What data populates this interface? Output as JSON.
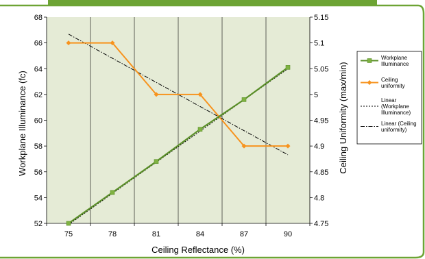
{
  "colors": {
    "frame": "#6da434",
    "plot_bg": "#e5ebd6",
    "workplane": "#5a8f28",
    "workplane_marker": "#7fb241",
    "ceiling": "#f7931e",
    "trend1": "#000000",
    "trend2": "#000000"
  },
  "chart_data": {
    "type": "line",
    "xlabel": "Ceiling Reflectance (%)",
    "ylabel_left": "Workplane Illuminance (fc)",
    "ylabel_right": "Ceiling Uniformity (max/min)",
    "categories": [
      "75",
      "78",
      "81",
      "84",
      "87",
      "90"
    ],
    "left_axis": {
      "min": 52,
      "max": 68,
      "ticks": [
        "52",
        "54",
        "56",
        "58",
        "60",
        "62",
        "64",
        "66",
        "68"
      ]
    },
    "right_axis": {
      "min": 4.75,
      "max": 5.15,
      "ticks": [
        "4.75",
        "4.8",
        "4.85",
        "4.9",
        "4.95",
        "5",
        "5.05",
        "5.1",
        "5.15"
      ]
    },
    "grid": "vertical",
    "legend_position": "right",
    "series": [
      {
        "name": "Workplane Illuminance",
        "axis": "left",
        "values": [
          52.0,
          54.4,
          56.8,
          59.3,
          61.6,
          64.1
        ]
      },
      {
        "name": "Ceiling uniformity",
        "axis": "right",
        "values": [
          5.1,
          5.1,
          5.0,
          5.0,
          4.9,
          4.9
        ]
      }
    ],
    "trendlines": [
      {
        "name": "Linear (Workplane Illuminance)",
        "axis": "left",
        "style": "dotted",
        "start": 51.9,
        "end": 64.0
      },
      {
        "name": "Linear (Ceiling uniformity)",
        "axis": "right",
        "style": "dash-dot",
        "start": 5.117,
        "end": 4.883
      }
    ]
  },
  "legend": {
    "items": [
      {
        "label_lines": [
          "Workplane",
          "Illuminance"
        ]
      },
      {
        "label_lines": [
          "Ceiling",
          "uniformity"
        ]
      },
      {
        "label_lines": [
          "Linear",
          "(Workplane",
          "Illuminance)"
        ]
      },
      {
        "label_lines": [
          "Linear (Ceiling",
          "uniformity)"
        ]
      }
    ]
  }
}
